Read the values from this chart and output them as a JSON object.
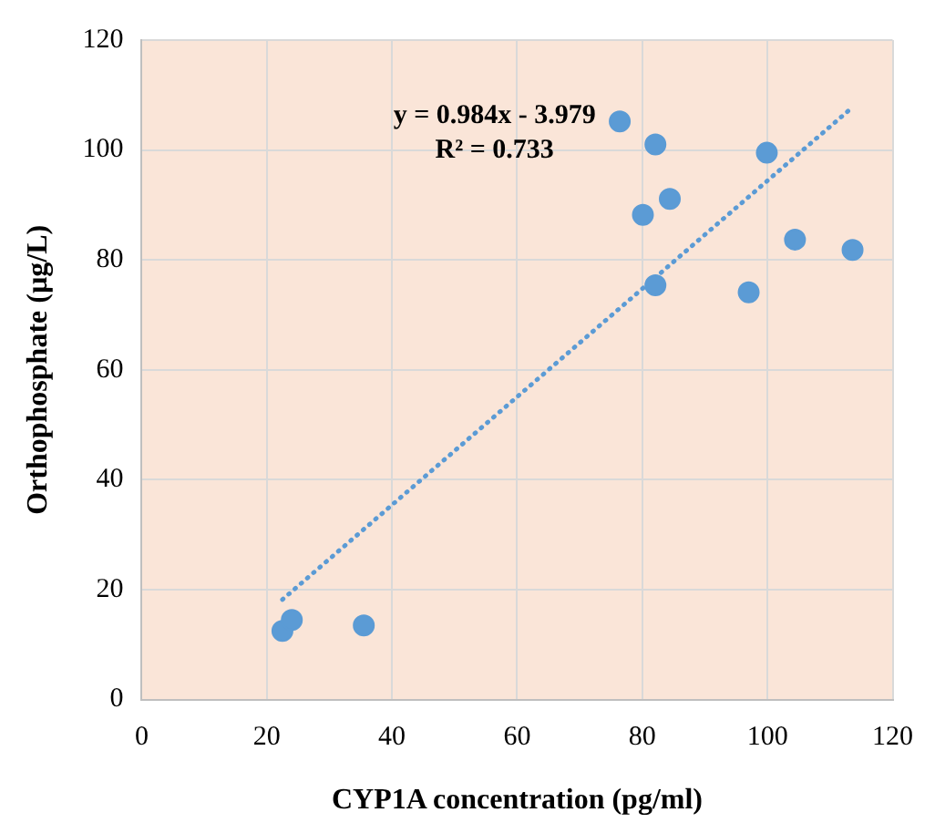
{
  "chart_data": {
    "type": "scatter",
    "xlabel": "CYP1A concentration (pg/ml)",
    "ylabel": "Orthophosphate (µg/L)",
    "annotations": [
      "y = 0.984x - 3.979",
      "R² = 0.733"
    ],
    "xlim": [
      0,
      120
    ],
    "xticks": [
      0,
      20,
      40,
      60,
      80,
      100,
      120
    ],
    "ylim": [
      0,
      120
    ],
    "yticks": [
      0,
      20,
      40,
      60,
      80,
      100,
      120
    ],
    "grid": true,
    "legend": false,
    "marker": "circle",
    "series": [
      {
        "color": "#5b9bd5",
        "x": [
          22.5,
          24,
          35.5,
          76.4,
          82.1,
          99.9,
          80.1,
          84.4,
          82.1,
          97,
          104.4,
          113.6
        ],
        "values": [
          12.5,
          14.5,
          13.5,
          105.2,
          101,
          99.5,
          88.2,
          91.1,
          75.4,
          74.1,
          83.7,
          81.8
        ]
      },
      {
        "type": "line",
        "color": "#5b9bd5",
        "line_style": "dotted",
        "marker": "none",
        "x": [
          22.5,
          113.6
        ],
        "values": [
          18.2,
          107.8
        ]
      }
    ]
  }
}
